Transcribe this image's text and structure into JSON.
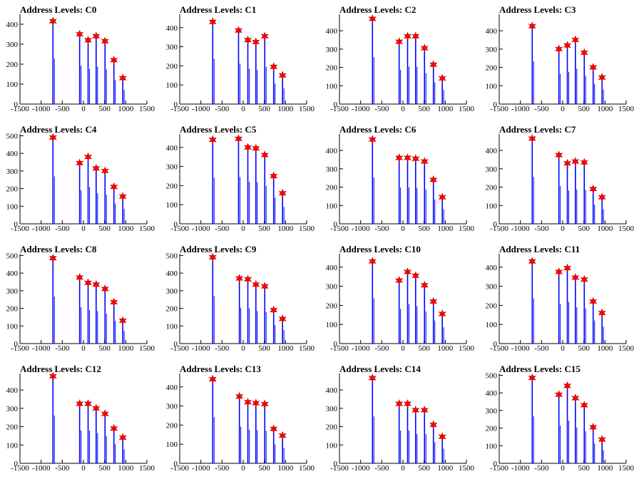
{
  "figure": {
    "x_ticks": [
      -1500,
      -1000,
      -500,
      0,
      500,
      1000,
      1500
    ],
    "x_tick_labels": [
      "-1500",
      "-1000",
      "-500",
      "0",
      "500",
      "1000",
      "1500"
    ],
    "colors": {
      "bars": "#0000ff",
      "markers": "#ff0000",
      "axes": "#000000"
    },
    "marker": "star"
  },
  "chart_data": [
    {
      "type": "bar",
      "title": "Address Levels: C0",
      "xlim": [
        -1500,
        1500
      ],
      "ylim": [
        0,
        450
      ],
      "yticks": [
        0,
        100,
        200,
        300,
        400
      ],
      "peaks": [
        {
          "x": -720,
          "y": 415
        },
        {
          "x": -90,
          "y": 350
        },
        {
          "x": 110,
          "y": 320
        },
        {
          "x": 300,
          "y": 340
        },
        {
          "x": 510,
          "y": 315
        },
        {
          "x": 720,
          "y": 220
        },
        {
          "x": 930,
          "y": 130
        }
      ]
    },
    {
      "type": "bar",
      "title": "Address Levels: C1",
      "xlim": [
        -1500,
        1500
      ],
      "ylim": [
        0,
        470
      ],
      "yticks": [
        0,
        100,
        200,
        300,
        400
      ],
      "peaks": [
        {
          "x": -720,
          "y": 430
        },
        {
          "x": -110,
          "y": 385
        },
        {
          "x": 110,
          "y": 335
        },
        {
          "x": 300,
          "y": 325
        },
        {
          "x": 510,
          "y": 355
        },
        {
          "x": 720,
          "y": 195
        },
        {
          "x": 930,
          "y": 150
        }
      ]
    },
    {
      "type": "bar",
      "title": "Address Levels: C2",
      "xlim": [
        -1500,
        1500
      ],
      "ylim": [
        0,
        490
      ],
      "yticks": [
        0,
        100,
        200,
        300,
        400
      ],
      "peaks": [
        {
          "x": -720,
          "y": 465
        },
        {
          "x": -90,
          "y": 340
        },
        {
          "x": 110,
          "y": 370
        },
        {
          "x": 300,
          "y": 370
        },
        {
          "x": 510,
          "y": 305
        },
        {
          "x": 720,
          "y": 215
        },
        {
          "x": 930,
          "y": 140
        }
      ]
    },
    {
      "type": "bar",
      "title": "Address Levels: C3",
      "xlim": [
        -1500,
        1500
      ],
      "ylim": [
        0,
        490
      ],
      "yticks": [
        0,
        100,
        200,
        300,
        400
      ],
      "peaks": [
        {
          "x": -720,
          "y": 425
        },
        {
          "x": -90,
          "y": 300
        },
        {
          "x": 110,
          "y": 320
        },
        {
          "x": 300,
          "y": 350
        },
        {
          "x": 510,
          "y": 280
        },
        {
          "x": 720,
          "y": 200
        },
        {
          "x": 930,
          "y": 145
        }
      ]
    },
    {
      "type": "bar",
      "title": "Address Levels: C4",
      "xlim": [
        -1500,
        1500
      ],
      "ylim": [
        0,
        510
      ],
      "yticks": [
        0,
        100,
        200,
        300,
        400,
        500
      ],
      "peaks": [
        {
          "x": -720,
          "y": 490
        },
        {
          "x": -90,
          "y": 345
        },
        {
          "x": 110,
          "y": 380
        },
        {
          "x": 300,
          "y": 315
        },
        {
          "x": 510,
          "y": 300
        },
        {
          "x": 720,
          "y": 210
        },
        {
          "x": 930,
          "y": 155
        }
      ]
    },
    {
      "type": "bar",
      "title": "Address Levels: C5",
      "xlim": [
        -1500,
        1500
      ],
      "ylim": [
        0,
        470
      ],
      "yticks": [
        0,
        100,
        200,
        300,
        400
      ],
      "peaks": [
        {
          "x": -720,
          "y": 440
        },
        {
          "x": -110,
          "y": 445
        },
        {
          "x": 110,
          "y": 400
        },
        {
          "x": 300,
          "y": 395
        },
        {
          "x": 510,
          "y": 360
        },
        {
          "x": 720,
          "y": 250
        },
        {
          "x": 930,
          "y": 160
        }
      ]
    },
    {
      "type": "bar",
      "title": "Address Levels: C6",
      "xlim": [
        -1500,
        1500
      ],
      "ylim": [
        0,
        490
      ],
      "yticks": [
        0,
        100,
        200,
        300,
        400
      ],
      "peaks": [
        {
          "x": -720,
          "y": 460
        },
        {
          "x": -90,
          "y": 360
        },
        {
          "x": 110,
          "y": 360
        },
        {
          "x": 300,
          "y": 355
        },
        {
          "x": 510,
          "y": 340
        },
        {
          "x": 720,
          "y": 240
        },
        {
          "x": 930,
          "y": 145
        }
      ]
    },
    {
      "type": "bar",
      "title": "Address Levels: C7",
      "xlim": [
        -1500,
        1500
      ],
      "ylim": [
        0,
        490
      ],
      "yticks": [
        0,
        100,
        200,
        300,
        400
      ],
      "peaks": [
        {
          "x": -720,
          "y": 465
        },
        {
          "x": -90,
          "y": 375
        },
        {
          "x": 110,
          "y": 330
        },
        {
          "x": 300,
          "y": 340
        },
        {
          "x": 510,
          "y": 335
        },
        {
          "x": 720,
          "y": 190
        },
        {
          "x": 930,
          "y": 145
        }
      ]
    },
    {
      "type": "bar",
      "title": "Address Levels: C8",
      "xlim": [
        -1500,
        1500
      ],
      "ylim": [
        0,
        510
      ],
      "yticks": [
        0,
        100,
        200,
        300,
        400,
        500
      ],
      "peaks": [
        {
          "x": -720,
          "y": 485
        },
        {
          "x": -90,
          "y": 375
        },
        {
          "x": 110,
          "y": 345
        },
        {
          "x": 300,
          "y": 335
        },
        {
          "x": 510,
          "y": 310
        },
        {
          "x": 720,
          "y": 235
        },
        {
          "x": 930,
          "y": 130
        }
      ]
    },
    {
      "type": "bar",
      "title": "Address Levels: C9",
      "xlim": [
        -1500,
        1500
      ],
      "ylim": [
        0,
        510
      ],
      "yticks": [
        0,
        100,
        200,
        300,
        400,
        500
      ],
      "peaks": [
        {
          "x": -720,
          "y": 490
        },
        {
          "x": -90,
          "y": 370
        },
        {
          "x": 110,
          "y": 365
        },
        {
          "x": 300,
          "y": 335
        },
        {
          "x": 510,
          "y": 325
        },
        {
          "x": 720,
          "y": 190
        },
        {
          "x": 930,
          "y": 140
        }
      ]
    },
    {
      "type": "bar",
      "title": "Address Levels: C10",
      "xlim": [
        -1500,
        1500
      ],
      "ylim": [
        0,
        470
      ],
      "yticks": [
        0,
        100,
        200,
        300,
        400
      ],
      "peaks": [
        {
          "x": -720,
          "y": 430
        },
        {
          "x": -90,
          "y": 330
        },
        {
          "x": 110,
          "y": 375
        },
        {
          "x": 300,
          "y": 355
        },
        {
          "x": 510,
          "y": 305
        },
        {
          "x": 720,
          "y": 220
        },
        {
          "x": 930,
          "y": 155
        }
      ]
    },
    {
      "type": "bar",
      "title": "Address Levels: C11",
      "xlim": [
        -1500,
        1500
      ],
      "ylim": [
        0,
        470
      ],
      "yticks": [
        0,
        100,
        200,
        300,
        400
      ],
      "peaks": [
        {
          "x": -720,
          "y": 430
        },
        {
          "x": -90,
          "y": 375
        },
        {
          "x": 110,
          "y": 395
        },
        {
          "x": 300,
          "y": 345
        },
        {
          "x": 510,
          "y": 335
        },
        {
          "x": 720,
          "y": 220
        },
        {
          "x": 930,
          "y": 160
        }
      ]
    },
    {
      "type": "bar",
      "title": "Address Levels: C12",
      "xlim": [
        -1500,
        1500
      ],
      "ylim": [
        0,
        490
      ],
      "yticks": [
        0,
        100,
        200,
        300,
        400
      ],
      "peaks": [
        {
          "x": -720,
          "y": 475
        },
        {
          "x": -90,
          "y": 325
        },
        {
          "x": 110,
          "y": 325
        },
        {
          "x": 300,
          "y": 300
        },
        {
          "x": 510,
          "y": 270
        },
        {
          "x": 720,
          "y": 190
        },
        {
          "x": 930,
          "y": 140
        }
      ]
    },
    {
      "type": "bar",
      "title": "Address Levels: C13",
      "xlim": [
        -1500,
        1500
      ],
      "ylim": [
        0,
        470
      ],
      "yticks": [
        0,
        100,
        200,
        300,
        400
      ],
      "peaks": [
        {
          "x": -720,
          "y": 440
        },
        {
          "x": -90,
          "y": 350
        },
        {
          "x": 110,
          "y": 320
        },
        {
          "x": 300,
          "y": 315
        },
        {
          "x": 510,
          "y": 310
        },
        {
          "x": 720,
          "y": 180
        },
        {
          "x": 930,
          "y": 145
        }
      ]
    },
    {
      "type": "bar",
      "title": "Address Levels: C14",
      "xlim": [
        -1500,
        1500
      ],
      "ylim": [
        0,
        490
      ],
      "yticks": [
        0,
        100,
        200,
        300,
        400
      ],
      "peaks": [
        {
          "x": -720,
          "y": 465
        },
        {
          "x": -90,
          "y": 325
        },
        {
          "x": 110,
          "y": 325
        },
        {
          "x": 300,
          "y": 290
        },
        {
          "x": 510,
          "y": 290
        },
        {
          "x": 720,
          "y": 210
        },
        {
          "x": 930,
          "y": 145
        }
      ]
    },
    {
      "type": "bar",
      "title": "Address Levels: C15",
      "xlim": [
        -1500,
        1500
      ],
      "ylim": [
        0,
        510
      ],
      "yticks": [
        0,
        100,
        200,
        300,
        400,
        500
      ],
      "peaks": [
        {
          "x": -720,
          "y": 485
        },
        {
          "x": -90,
          "y": 390
        },
        {
          "x": 110,
          "y": 440
        },
        {
          "x": 300,
          "y": 370
        },
        {
          "x": 510,
          "y": 330
        },
        {
          "x": 720,
          "y": 205
        },
        {
          "x": 930,
          "y": 135
        }
      ]
    }
  ]
}
